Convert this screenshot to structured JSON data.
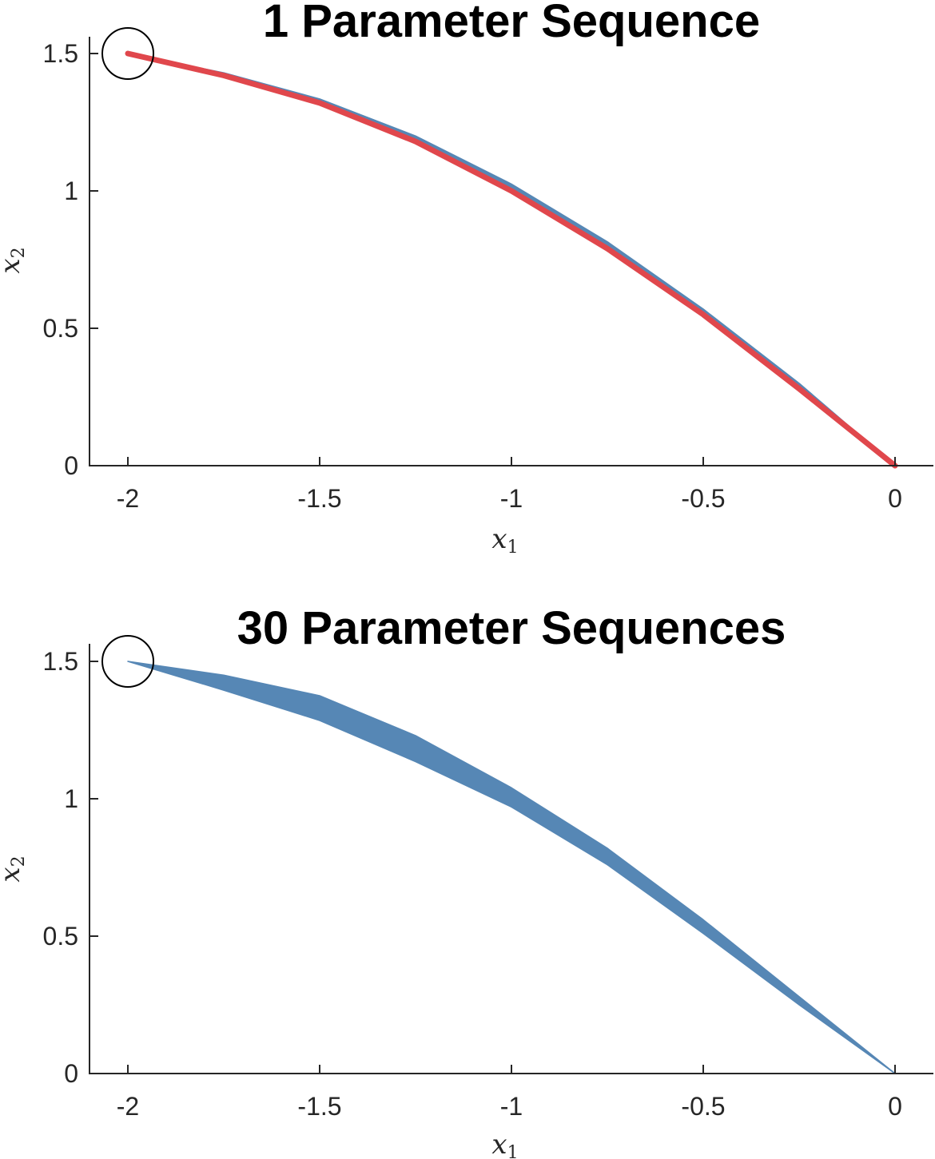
{
  "chart_data": [
    {
      "type": "area",
      "title": "1 Parameter Sequence",
      "xlabel": "x",
      "xlabel_sub": "1",
      "ylabel": "x",
      "ylabel_sub": "2",
      "xlim": [
        -2.1,
        0.1
      ],
      "ylim": [
        0,
        1.5
      ],
      "xticks": [
        "-2",
        "-1.5",
        "-1",
        "-0.5",
        "0"
      ],
      "xtick_values": [
        -2,
        -1.5,
        -1,
        -0.5,
        0
      ],
      "yticks": [
        "0",
        "0.5",
        "1",
        "1.5"
      ],
      "ytick_values": [
        0,
        0.5,
        1,
        1.5
      ],
      "grid": false,
      "start_marker": {
        "x": -2,
        "y": 1.5,
        "shape": "circle"
      },
      "band": {
        "color": "#5687b5",
        "x": [
          -2,
          -1.75,
          -1.5,
          -1.25,
          -1,
          -0.75,
          -0.5,
          -0.25,
          0
        ],
        "upper": [
          1.5,
          1.43,
          1.335,
          1.2,
          1.025,
          0.815,
          0.57,
          0.3,
          0
        ],
        "lower": [
          1.5,
          1.415,
          1.315,
          1.175,
          0.995,
          0.785,
          0.545,
          0.28,
          0
        ]
      },
      "series": [
        {
          "color": "#e0474c",
          "x": [
            -2,
            -1.75,
            -1.5,
            -1.25,
            -1,
            -0.75,
            -0.5,
            -0.25,
            0
          ],
          "y": [
            1.5,
            1.42,
            1.32,
            1.18,
            1.0,
            0.79,
            0.55,
            0.28,
            0
          ]
        }
      ]
    },
    {
      "type": "area",
      "title": "30 Parameter Sequences",
      "xlabel": "x",
      "xlabel_sub": "1",
      "ylabel": "x",
      "ylabel_sub": "2",
      "xlim": [
        -2.1,
        0.1
      ],
      "ylim": [
        0,
        1.5
      ],
      "xticks": [
        "-2",
        "-1.5",
        "-1",
        "-0.5",
        "0"
      ],
      "xtick_values": [
        -2,
        -1.5,
        -1,
        -0.5,
        0
      ],
      "yticks": [
        "0",
        "0.5",
        "1",
        "1.5"
      ],
      "ytick_values": [
        0,
        0.5,
        1,
        1.5
      ],
      "grid": false,
      "start_marker": {
        "x": -2,
        "y": 1.5,
        "shape": "circle"
      },
      "band": {
        "color": "#5687b5",
        "x": [
          -2,
          -1.75,
          -1.5,
          -1.25,
          -1,
          -0.75,
          -0.5,
          -0.25,
          0
        ],
        "upper": [
          1.5,
          1.45,
          1.375,
          1.23,
          1.04,
          0.82,
          0.56,
          0.28,
          0
        ],
        "lower": [
          1.5,
          1.395,
          1.285,
          1.135,
          0.97,
          0.76,
          0.51,
          0.25,
          0
        ]
      },
      "series": []
    }
  ]
}
